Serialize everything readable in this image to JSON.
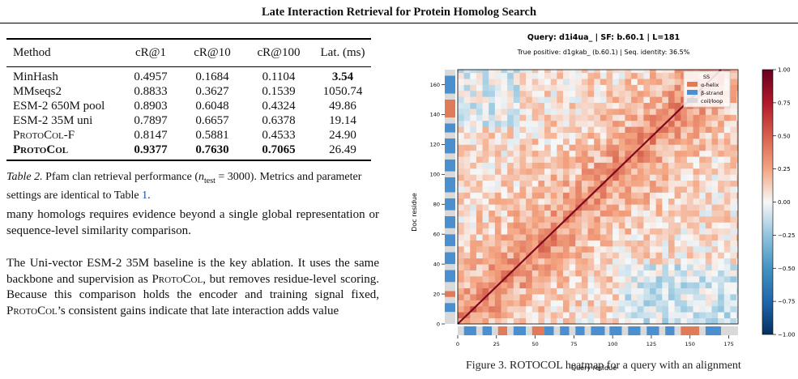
{
  "running_head": "Late Interaction Retrieval for Protein Homolog Search",
  "table": {
    "headers": [
      "Method",
      "cR@1",
      "cR@10",
      "cR@100",
      "Lat. (ms)"
    ],
    "rows": [
      {
        "method": "MinHash",
        "cr1": "0.4957",
        "cr10": "0.1684",
        "cr100": "0.1104",
        "lat": "3.54",
        "bold_lat": true
      },
      {
        "method": "MMseqs2",
        "cr1": "0.8833",
        "cr10": "0.3627",
        "cr100": "0.1539",
        "lat": "1050.74"
      },
      {
        "method": "ESM-2 650M pool",
        "cr1": "0.8903",
        "cr10": "0.6048",
        "cr100": "0.4324",
        "lat": "49.86"
      },
      {
        "method": "ESM-2 35M uni",
        "cr1": "0.7897",
        "cr10": "0.6657",
        "cr100": "0.6378",
        "lat": "19.14"
      },
      {
        "method": "ProtoCol-F",
        "cr1": "0.8147",
        "cr10": "0.5881",
        "cr100": "0.4533",
        "lat": "24.90"
      },
      {
        "method": "ProtoCol",
        "cr1": "0.9377",
        "cr10": "0.7630",
        "cr100": "0.7065",
        "lat": "26.49",
        "bold_row": true
      }
    ]
  },
  "caption": {
    "label": "Table 2.",
    "text_a": " Pfam clan retrieval performance (",
    "math": "n",
    "math_sub": "test",
    "text_b": " = 3000). Metrics and parameter settings are identical to Table ",
    "ref": "1",
    "text_c": "."
  },
  "para1": "many homologs requires evidence beyond a single global representation or sequence-level similarity comparison.",
  "para2": {
    "a": "The Uni-vector ESM-2 35M baseline is the key ablation. It uses the same backbone and supervision as ",
    "b": "ProtoCol",
    "c": ", but removes residue-level scoring. Because this comparison holds the encoder and training signal fixed, ",
    "d": "ProtoCol",
    "e": "’s consistent gains indicate that late interaction adds value"
  },
  "figure": {
    "title": "Query: d1i4ua_  |  SF: b.60.1  |  L=181",
    "subtitle": "True positive: d1gkab_  (b.60.1)  |  Seq. identity: 36.5%",
    "xlabel": "Query residue",
    "ylabel": "Doc residue",
    "legend_title": "SS",
    "legend": [
      {
        "label": "α-helix",
        "color": "#e07b5a"
      },
      {
        "label": "β-strand",
        "color": "#4a8fcf"
      },
      {
        "label": "coil/loop",
        "color": "#d9d9d9"
      }
    ],
    "caption_cut": "Figure 3.  ROTOCOL heatmap for a query with an alignment"
  },
  "chart_data": {
    "type": "heatmap",
    "title": "Query: d1i4ua_  |  SF: b.60.1  |  L=181",
    "subtitle": "True positive: d1gkab_  (b.60.1)  |  Seq. identity: 36.5%",
    "xlabel": "Query residue",
    "ylabel": "Doc residue",
    "x_range": [
      0,
      181
    ],
    "y_range": [
      0,
      170
    ],
    "x_ticks": [
      0,
      25,
      50,
      75,
      100,
      125,
      150,
      175
    ],
    "y_ticks": [
      0,
      20,
      40,
      60,
      80,
      100,
      120,
      140,
      160
    ],
    "colorbar": {
      "min": -1.0,
      "max": 1.0,
      "ticks": [
        "1.00",
        "0.75",
        "0.50",
        "0.25",
        "0.00",
        "−0.25",
        "−0.50",
        "−0.75",
        "−1.00"
      ],
      "colormap": "RdBu_r"
    },
    "query_ss": [
      {
        "start": 0,
        "end": 4,
        "type": "coil"
      },
      {
        "start": 4,
        "end": 12,
        "type": "strand"
      },
      {
        "start": 12,
        "end": 16,
        "type": "coil"
      },
      {
        "start": 16,
        "end": 22,
        "type": "strand"
      },
      {
        "start": 22,
        "end": 26,
        "type": "coil"
      },
      {
        "start": 26,
        "end": 32,
        "type": "helix"
      },
      {
        "start": 32,
        "end": 36,
        "type": "coil"
      },
      {
        "start": 36,
        "end": 44,
        "type": "strand"
      },
      {
        "start": 44,
        "end": 48,
        "type": "coil"
      },
      {
        "start": 48,
        "end": 56,
        "type": "helix"
      },
      {
        "start": 56,
        "end": 62,
        "type": "strand"
      },
      {
        "start": 62,
        "end": 66,
        "type": "coil"
      },
      {
        "start": 66,
        "end": 72,
        "type": "strand"
      },
      {
        "start": 72,
        "end": 76,
        "type": "coil"
      },
      {
        "start": 76,
        "end": 82,
        "type": "strand"
      },
      {
        "start": 82,
        "end": 86,
        "type": "coil"
      },
      {
        "start": 86,
        "end": 95,
        "type": "strand"
      },
      {
        "start": 95,
        "end": 98,
        "type": "coil"
      },
      {
        "start": 98,
        "end": 106,
        "type": "strand"
      },
      {
        "start": 106,
        "end": 110,
        "type": "coil"
      },
      {
        "start": 110,
        "end": 118,
        "type": "strand"
      },
      {
        "start": 118,
        "end": 122,
        "type": "coil"
      },
      {
        "start": 122,
        "end": 130,
        "type": "strand"
      },
      {
        "start": 130,
        "end": 134,
        "type": "coil"
      },
      {
        "start": 134,
        "end": 140,
        "type": "strand"
      },
      {
        "start": 140,
        "end": 144,
        "type": "coil"
      },
      {
        "start": 144,
        "end": 156,
        "type": "helix"
      },
      {
        "start": 156,
        "end": 160,
        "type": "coil"
      },
      {
        "start": 160,
        "end": 170,
        "type": "strand"
      },
      {
        "start": 170,
        "end": 181,
        "type": "coil"
      }
    ],
    "doc_ss": [
      {
        "start": 0,
        "end": 8,
        "type": "coil"
      },
      {
        "start": 8,
        "end": 14,
        "type": "strand"
      },
      {
        "start": 14,
        "end": 18,
        "type": "coil"
      },
      {
        "start": 18,
        "end": 22,
        "type": "helix"
      },
      {
        "start": 22,
        "end": 28,
        "type": "coil"
      },
      {
        "start": 28,
        "end": 36,
        "type": "strand"
      },
      {
        "start": 36,
        "end": 40,
        "type": "coil"
      },
      {
        "start": 40,
        "end": 48,
        "type": "strand"
      },
      {
        "start": 48,
        "end": 52,
        "type": "coil"
      },
      {
        "start": 52,
        "end": 60,
        "type": "strand"
      },
      {
        "start": 60,
        "end": 64,
        "type": "coil"
      },
      {
        "start": 64,
        "end": 72,
        "type": "strand"
      },
      {
        "start": 72,
        "end": 76,
        "type": "coil"
      },
      {
        "start": 76,
        "end": 84,
        "type": "strand"
      },
      {
        "start": 84,
        "end": 88,
        "type": "coil"
      },
      {
        "start": 88,
        "end": 98,
        "type": "strand"
      },
      {
        "start": 98,
        "end": 102,
        "type": "coil"
      },
      {
        "start": 102,
        "end": 110,
        "type": "strand"
      },
      {
        "start": 110,
        "end": 114,
        "type": "coil"
      },
      {
        "start": 114,
        "end": 124,
        "type": "strand"
      },
      {
        "start": 124,
        "end": 128,
        "type": "coil"
      },
      {
        "start": 128,
        "end": 134,
        "type": "strand"
      },
      {
        "start": 134,
        "end": 138,
        "type": "coil"
      },
      {
        "start": 138,
        "end": 150,
        "type": "helix"
      },
      {
        "start": 150,
        "end": 154,
        "type": "coil"
      },
      {
        "start": 154,
        "end": 166,
        "type": "strand"
      },
      {
        "start": 166,
        "end": 170,
        "type": "coil"
      }
    ],
    "diagonal": {
      "x0": 0,
      "y0": 0,
      "x1": 170,
      "y1": 170,
      "peak": 0.95
    }
  }
}
